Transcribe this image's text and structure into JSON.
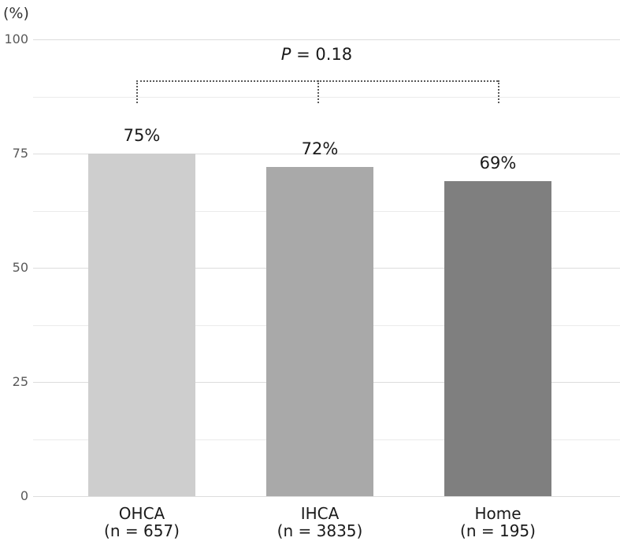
{
  "chart_data": {
    "type": "bar",
    "title": "",
    "ylabel": "(%)",
    "categories": [
      "OHCA",
      "IHCA",
      "Home"
    ],
    "category_sublabels": [
      "(n = 657)",
      "(n = 3835)",
      "(n = 195)"
    ],
    "values": [
      75,
      72,
      69
    ],
    "value_labels": [
      "75%",
      "72%",
      "69%"
    ],
    "bar_colors": [
      "#cecece",
      "#a9a9a9",
      "#7f7f7f"
    ],
    "ylim": [
      0,
      100
    ],
    "y_major_ticks": [
      0,
      25,
      50,
      75,
      100
    ],
    "y_major_tick_labels": [
      "0",
      "25",
      "50",
      "75",
      "100"
    ],
    "y_minor_ticks": [
      12.5,
      37.5,
      62.5,
      87.5
    ],
    "grid": "horizontal",
    "legend": "none",
    "annotation": {
      "symbol": "P",
      "rest": " = 0.18",
      "text": "P = 0.18",
      "bracket_style": "dotted",
      "bracket_from_category": "OHCA",
      "bracket_to_category": "Home",
      "bracket_mid_tick_category": "IHCA"
    },
    "colors": {
      "major_gridline": "#dddddd",
      "minor_gridline": "#ebebeb",
      "tick_label_text": "#595959",
      "label_text": "#1a1a1a",
      "bracket": "#595959",
      "background": "#ffffff"
    }
  }
}
